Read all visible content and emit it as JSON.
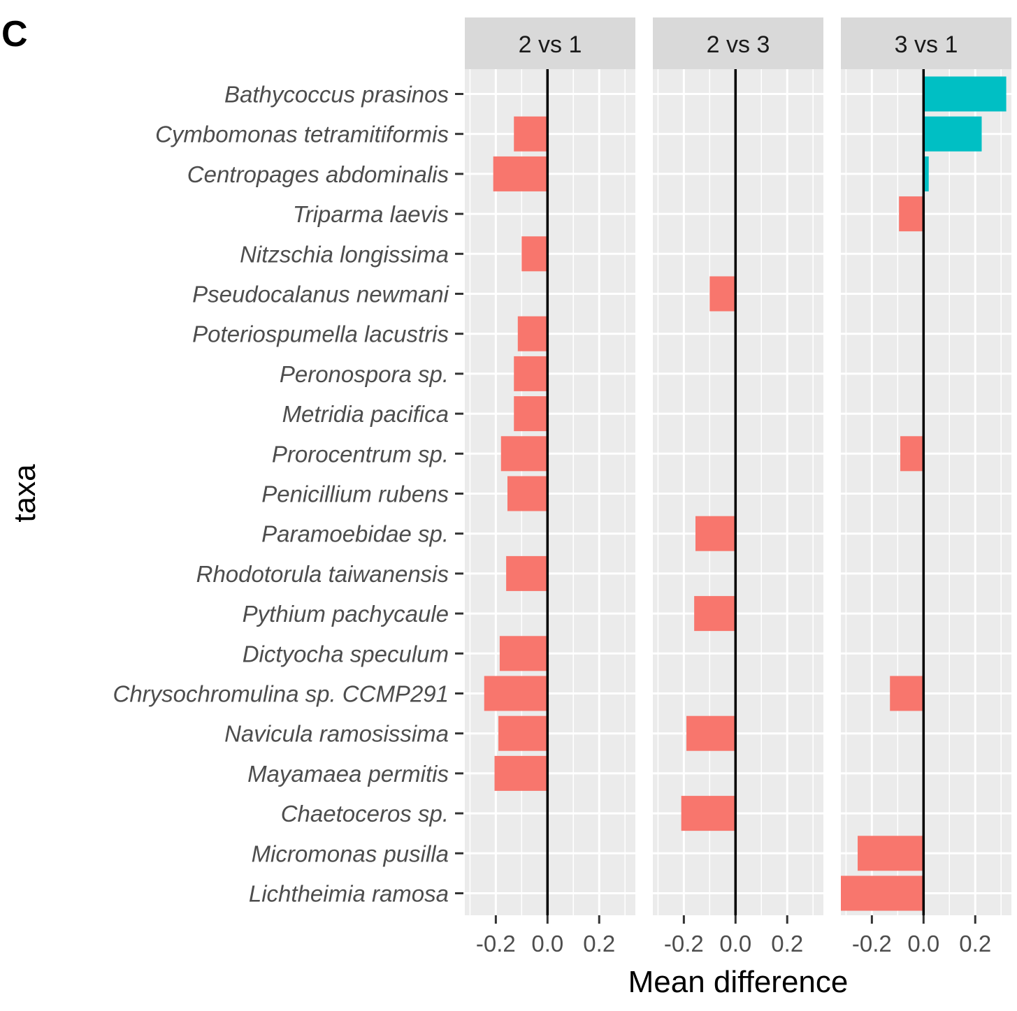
{
  "panel_label": "C",
  "chart_data": {
    "type": "bar",
    "orientation": "horizontal",
    "xlabel": "Mean difference",
    "ylabel": "taxa",
    "xlim": [
      -0.32,
      0.34
    ],
    "xticks": [
      -0.2,
      0.0,
      0.2
    ],
    "xtick_labels": [
      "-0.2",
      "0.0",
      "0.2"
    ],
    "grid": true,
    "zero_line": true,
    "colors": {
      "negative": "#F8766D",
      "positive": "#00BFC4",
      "panel_bg": "#EBEBEB",
      "strip_bg": "#D9D9D9",
      "grid": "#FFFFFF"
    },
    "categories": [
      "Bathycoccus prasinos",
      "Cymbomonas tetramitiformis",
      "Centropages abdominalis",
      "Triparma laevis",
      "Nitzschia longissima",
      "Pseudocalanus newmani",
      "Poteriospumella lacustris",
      "Peronospora sp.",
      "Metridia pacifica",
      "Prorocentrum sp.",
      "Penicillium rubens",
      "Paramoebidae sp.",
      "Rhodotorula taiwanensis",
      "Pythium pachycaule",
      "Dictyocha speculum",
      "Chrysochromulina sp. CCMP291",
      "Navicula ramosissima",
      "Mayamaea permitis",
      "Chaetoceros sp.",
      "Micromonas pusilla",
      "Lichtheimia ramosa"
    ],
    "facets": [
      {
        "label": "2 vs 1",
        "values": [
          null,
          -0.13,
          -0.21,
          null,
          -0.1,
          null,
          -0.115,
          -0.13,
          -0.13,
          -0.18,
          -0.155,
          null,
          -0.16,
          null,
          -0.185,
          -0.245,
          -0.19,
          -0.205,
          null,
          null,
          null
        ]
      },
      {
        "label": "2 vs 3",
        "values": [
          null,
          null,
          null,
          null,
          null,
          -0.1,
          null,
          null,
          null,
          null,
          null,
          -0.155,
          null,
          -0.16,
          null,
          null,
          -0.19,
          null,
          -0.21,
          null,
          null
        ]
      },
      {
        "label": "3 vs 1",
        "values": [
          0.32,
          0.225,
          0.02,
          -0.095,
          null,
          null,
          null,
          null,
          null,
          -0.09,
          null,
          null,
          null,
          null,
          null,
          -0.13,
          null,
          null,
          null,
          -0.255,
          -0.32
        ]
      }
    ]
  }
}
